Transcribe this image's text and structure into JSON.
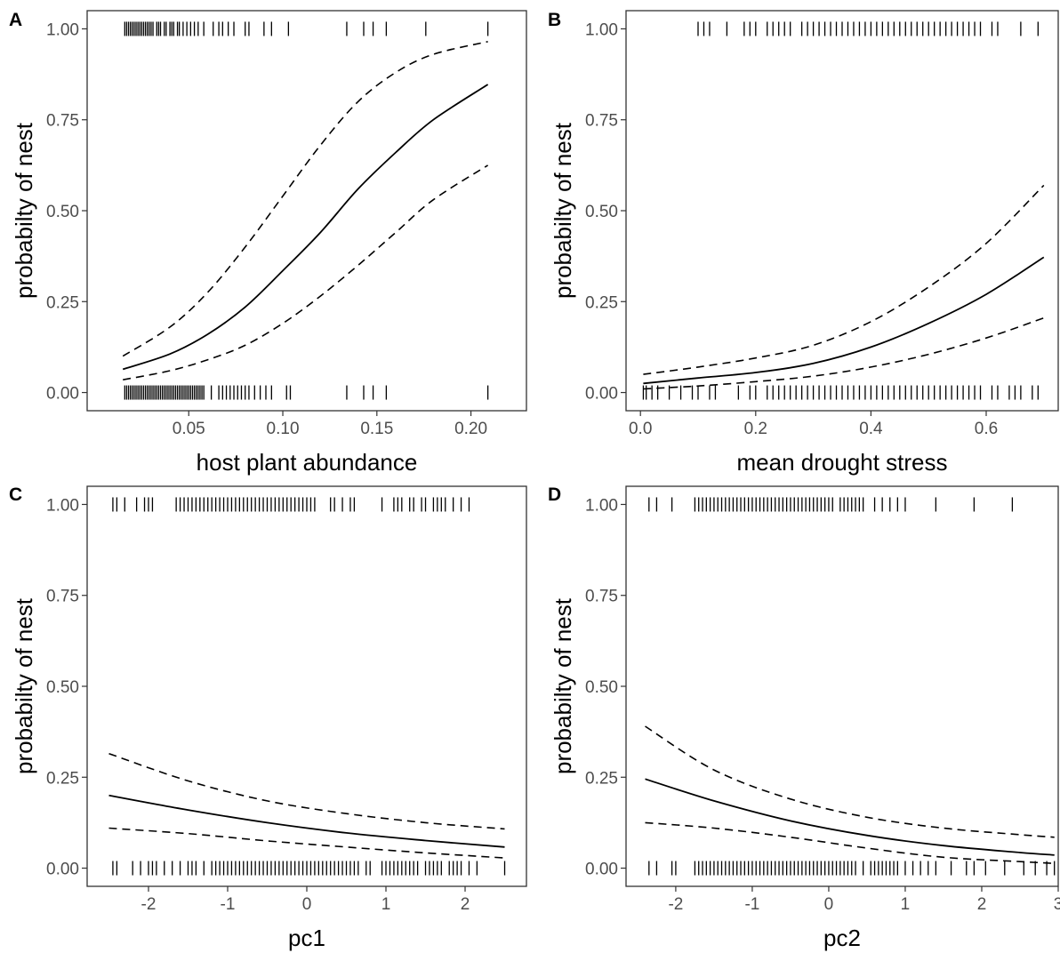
{
  "chart_data": [
    {
      "panel": "A",
      "type": "line",
      "xlabel": "host plant abundance",
      "ylabel": "probabilty of nest",
      "xlim": [
        -0.004,
        0.2295
      ],
      "ylim": [
        -0.05,
        1.05
      ],
      "xticks": [
        0.05,
        0.1,
        0.15,
        0.2
      ],
      "xtick_labels": [
        "0.05",
        "0.10",
        "0.15",
        "0.20"
      ],
      "yticks": [
        0,
        0.25,
        0.5,
        0.75,
        1
      ],
      "ytick_labels": [
        "0.00",
        "0.25",
        "0.50",
        "0.75",
        "1.00"
      ],
      "series": [
        {
          "name": "",
          "style": "fit",
          "x": [
            0.015,
            0.04,
            0.06,
            0.08,
            0.1,
            0.12,
            0.14,
            0.16,
            0.18,
            0.209
          ],
          "values": [
            0.064,
            0.106,
            0.16,
            0.235,
            0.335,
            0.44,
            0.56,
            0.66,
            0.75,
            0.847
          ]
        },
        {
          "name": "",
          "style": "ci",
          "x": [
            0.015,
            0.04,
            0.06,
            0.08,
            0.1,
            0.12,
            0.14,
            0.16,
            0.18,
            0.209
          ],
          "values": [
            0.1,
            0.18,
            0.275,
            0.4,
            0.54,
            0.68,
            0.8,
            0.88,
            0.93,
            0.965
          ]
        },
        {
          "name": "",
          "style": "ci",
          "x": [
            0.015,
            0.04,
            0.06,
            0.08,
            0.1,
            0.12,
            0.14,
            0.16,
            0.18,
            0.209
          ],
          "values": [
            0.035,
            0.06,
            0.09,
            0.13,
            0.19,
            0.265,
            0.35,
            0.44,
            0.53,
            0.625
          ]
        }
      ],
      "rug_top": [
        0.016,
        0.017,
        0.018,
        0.019,
        0.02,
        0.021,
        0.022,
        0.023,
        0.024,
        0.025,
        0.026,
        0.027,
        0.028,
        0.029,
        0.03,
        0.031,
        0.033,
        0.034,
        0.035,
        0.037,
        0.038,
        0.04,
        0.041,
        0.042,
        0.044,
        0.045,
        0.047,
        0.049,
        0.051,
        0.053,
        0.055,
        0.058,
        0.063,
        0.066,
        0.068,
        0.071,
        0.074,
        0.08,
        0.082,
        0.09,
        0.094,
        0.103,
        0.134,
        0.143,
        0.148,
        0.155,
        0.176,
        0.209
      ],
      "rug_bottom": [
        0.016,
        0.017,
        0.018,
        0.019,
        0.02,
        0.021,
        0.022,
        0.023,
        0.024,
        0.025,
        0.026,
        0.027,
        0.028,
        0.029,
        0.03,
        0.031,
        0.032,
        0.033,
        0.034,
        0.035,
        0.036,
        0.037,
        0.038,
        0.039,
        0.04,
        0.041,
        0.042,
        0.043,
        0.044,
        0.045,
        0.046,
        0.047,
        0.048,
        0.049,
        0.05,
        0.051,
        0.052,
        0.053,
        0.054,
        0.055,
        0.056,
        0.057,
        0.058,
        0.062,
        0.066,
        0.068,
        0.07,
        0.072,
        0.074,
        0.076,
        0.078,
        0.08,
        0.082,
        0.085,
        0.088,
        0.091,
        0.094,
        0.102,
        0.104,
        0.134,
        0.143,
        0.148,
        0.155,
        0.209
      ]
    },
    {
      "panel": "B",
      "type": "line",
      "xlabel": "mean drought stress",
      "ylabel": "probabilty of nest",
      "xlim": [
        -0.025,
        0.725
      ],
      "ylim": [
        -0.05,
        1.05
      ],
      "xticks": [
        0.0,
        0.2,
        0.4,
        0.6
      ],
      "xtick_labels": [
        "0.0",
        "0.2",
        "0.4",
        "0.6"
      ],
      "yticks": [
        0,
        0.25,
        0.5,
        0.75,
        1
      ],
      "ytick_labels": [
        "0.00",
        "0.25",
        "0.50",
        "0.75",
        "1.00"
      ],
      "series": [
        {
          "name": "",
          "style": "fit",
          "x": [
            0.005,
            0.1,
            0.2,
            0.3,
            0.4,
            0.5,
            0.6,
            0.7
          ],
          "values": [
            0.025,
            0.04,
            0.055,
            0.08,
            0.125,
            0.19,
            0.27,
            0.372
          ]
        },
        {
          "name": "",
          "style": "ci",
          "x": [
            0.005,
            0.1,
            0.2,
            0.3,
            0.4,
            0.5,
            0.6,
            0.7
          ],
          "values": [
            0.05,
            0.07,
            0.095,
            0.13,
            0.195,
            0.29,
            0.41,
            0.57
          ]
        },
        {
          "name": "",
          "style": "ci",
          "x": [
            0.005,
            0.1,
            0.2,
            0.3,
            0.4,
            0.5,
            0.6,
            0.7
          ],
          "values": [
            0.01,
            0.018,
            0.03,
            0.045,
            0.07,
            0.105,
            0.15,
            0.205
          ]
        }
      ],
      "rug_top": [
        0.1,
        0.11,
        0.12,
        0.15,
        0.18,
        0.19,
        0.2,
        0.22,
        0.23,
        0.24,
        0.25,
        0.26,
        0.28,
        0.29,
        0.3,
        0.31,
        0.32,
        0.33,
        0.34,
        0.35,
        0.36,
        0.37,
        0.38,
        0.39,
        0.4,
        0.41,
        0.42,
        0.43,
        0.44,
        0.45,
        0.46,
        0.47,
        0.48,
        0.49,
        0.5,
        0.51,
        0.52,
        0.53,
        0.54,
        0.55,
        0.56,
        0.57,
        0.58,
        0.59,
        0.61,
        0.62,
        0.66,
        0.69
      ],
      "rug_bottom": [
        0.005,
        0.01,
        0.02,
        0.03,
        0.05,
        0.07,
        0.09,
        0.1,
        0.12,
        0.13,
        0.17,
        0.19,
        0.2,
        0.22,
        0.23,
        0.24,
        0.25,
        0.26,
        0.27,
        0.28,
        0.29,
        0.3,
        0.31,
        0.32,
        0.33,
        0.34,
        0.35,
        0.36,
        0.37,
        0.38,
        0.39,
        0.4,
        0.41,
        0.42,
        0.43,
        0.44,
        0.45,
        0.46,
        0.47,
        0.48,
        0.49,
        0.5,
        0.51,
        0.52,
        0.53,
        0.54,
        0.55,
        0.56,
        0.57,
        0.58,
        0.59,
        0.61,
        0.62,
        0.64,
        0.65,
        0.66,
        0.68,
        0.69
      ]
    },
    {
      "panel": "C",
      "type": "line",
      "xlabel": "pc1",
      "ylabel": "probabilty of nest",
      "xlim": [
        -2.775,
        2.775
      ],
      "ylim": [
        -0.05,
        1.05
      ],
      "xticks": [
        -2,
        -1,
        0,
        1,
        2
      ],
      "xtick_labels": [
        "-2",
        "-1",
        "0",
        "1",
        "2"
      ],
      "yticks": [
        0,
        0.25,
        0.5,
        0.75,
        1
      ],
      "ytick_labels": [
        "0.00",
        "0.25",
        "0.50",
        "0.75",
        "1.00"
      ],
      "series": [
        {
          "name": "",
          "style": "fit",
          "x": [
            -2.5,
            -1.5,
            -0.5,
            0.5,
            1.5,
            2.5
          ],
          "values": [
            0.2,
            0.16,
            0.125,
            0.097,
            0.076,
            0.058
          ]
        },
        {
          "name": "",
          "style": "ci",
          "x": [
            -2.5,
            -1.5,
            -0.5,
            0.5,
            1.5,
            2.5
          ],
          "values": [
            0.315,
            0.24,
            0.185,
            0.15,
            0.125,
            0.108
          ]
        },
        {
          "name": "",
          "style": "ci",
          "x": [
            -2.5,
            -1.5,
            -0.5,
            0.5,
            1.5,
            2.5
          ],
          "values": [
            0.11,
            0.095,
            0.075,
            0.058,
            0.042,
            0.028
          ]
        }
      ],
      "rug_top": [
        -2.45,
        -2.4,
        -2.3,
        -2.15,
        -2.05,
        -2.0,
        -1.95,
        -1.65,
        -1.6,
        -1.55,
        -1.5,
        -1.45,
        -1.4,
        -1.35,
        -1.3,
        -1.25,
        -1.2,
        -1.15,
        -1.1,
        -1.05,
        -1.0,
        -0.95,
        -0.9,
        -0.85,
        -0.8,
        -0.75,
        -0.7,
        -0.65,
        -0.6,
        -0.55,
        -0.5,
        -0.45,
        -0.4,
        -0.35,
        -0.3,
        -0.25,
        -0.2,
        -0.15,
        -0.1,
        -0.05,
        0.0,
        0.05,
        0.1,
        0.3,
        0.35,
        0.45,
        0.55,
        0.6,
        0.95,
        1.1,
        1.15,
        1.2,
        1.3,
        1.35,
        1.45,
        1.5,
        1.6,
        1.65,
        1.7,
        1.75,
        1.85,
        1.95,
        2.05
      ],
      "rug_bottom": [
        -2.45,
        -2.4,
        -2.2,
        -2.1,
        -2.0,
        -1.95,
        -1.9,
        -1.8,
        -1.7,
        -1.6,
        -1.5,
        -1.45,
        -1.4,
        -1.3,
        -1.2,
        -1.15,
        -1.1,
        -1.05,
        -1.0,
        -0.95,
        -0.9,
        -0.85,
        -0.8,
        -0.75,
        -0.7,
        -0.65,
        -0.6,
        -0.55,
        -0.5,
        -0.45,
        -0.4,
        -0.35,
        -0.3,
        -0.25,
        -0.2,
        -0.15,
        -0.1,
        -0.05,
        0.0,
        0.05,
        0.1,
        0.15,
        0.2,
        0.25,
        0.3,
        0.35,
        0.4,
        0.45,
        0.5,
        0.55,
        0.6,
        0.65,
        0.75,
        0.8,
        0.95,
        1.0,
        1.05,
        1.1,
        1.15,
        1.2,
        1.25,
        1.3,
        1.35,
        1.4,
        1.5,
        1.55,
        1.6,
        1.65,
        1.7,
        1.8,
        1.85,
        1.9,
        1.95,
        2.05,
        2.15,
        2.5
      ]
    },
    {
      "panel": "D",
      "type": "line",
      "xlabel": "pc2",
      "ylabel": "probabilty of nest",
      "xlim": [
        -2.65,
        3.0
      ],
      "ylim": [
        -0.05,
        1.05
      ],
      "xticks": [
        -2,
        -1,
        0,
        1,
        2,
        3
      ],
      "xtick_labels": [
        "-2",
        "-1",
        "0",
        "1",
        "2",
        "3"
      ],
      "yticks": [
        0,
        0.25,
        0.5,
        0.75,
        1
      ],
      "ytick_labels": [
        "0.00",
        "0.25",
        "0.50",
        "0.75",
        "1.00"
      ],
      "series": [
        {
          "name": "",
          "style": "fit",
          "x": [
            -2.4,
            -1.5,
            -0.5,
            0.5,
            1.5,
            2.5,
            2.95
          ],
          "values": [
            0.245,
            0.185,
            0.13,
            0.09,
            0.062,
            0.043,
            0.036
          ]
        },
        {
          "name": "",
          "style": "ci",
          "x": [
            -2.4,
            -1.5,
            -0.5,
            0.5,
            1.5,
            2.5,
            2.95
          ],
          "values": [
            0.39,
            0.27,
            0.19,
            0.14,
            0.11,
            0.092,
            0.085
          ]
        },
        {
          "name": "",
          "style": "ci",
          "x": [
            -2.4,
            -1.5,
            -0.5,
            0.5,
            1.5,
            2.5,
            2.95
          ],
          "values": [
            0.125,
            0.11,
            0.085,
            0.055,
            0.03,
            0.018,
            0.013
          ]
        }
      ],
      "rug_top": [
        -2.35,
        -2.25,
        -2.05,
        -1.75,
        -1.7,
        -1.65,
        -1.6,
        -1.55,
        -1.5,
        -1.45,
        -1.4,
        -1.35,
        -1.3,
        -1.25,
        -1.2,
        -1.15,
        -1.1,
        -1.05,
        -1.0,
        -0.95,
        -0.9,
        -0.85,
        -0.8,
        -0.75,
        -0.7,
        -0.65,
        -0.6,
        -0.55,
        -0.5,
        -0.45,
        -0.4,
        -0.35,
        -0.3,
        -0.25,
        -0.2,
        -0.15,
        -0.1,
        -0.05,
        0.0,
        0.05,
        0.15,
        0.2,
        0.25,
        0.3,
        0.35,
        0.4,
        0.45,
        0.6,
        0.7,
        0.8,
        0.9,
        1.0,
        1.4,
        1.9,
        2.4
      ],
      "rug_bottom": [
        -2.35,
        -2.25,
        -2.05,
        -2.0,
        -1.75,
        -1.7,
        -1.65,
        -1.6,
        -1.55,
        -1.5,
        -1.45,
        -1.4,
        -1.35,
        -1.3,
        -1.25,
        -1.2,
        -1.15,
        -1.1,
        -1.05,
        -1.0,
        -0.95,
        -0.9,
        -0.85,
        -0.8,
        -0.75,
        -0.7,
        -0.65,
        -0.6,
        -0.55,
        -0.5,
        -0.45,
        -0.4,
        -0.35,
        -0.3,
        -0.25,
        -0.2,
        -0.15,
        -0.1,
        -0.05,
        0.0,
        0.05,
        0.1,
        0.15,
        0.2,
        0.25,
        0.3,
        0.35,
        0.45,
        0.55,
        0.6,
        0.65,
        0.7,
        0.75,
        0.8,
        0.85,
        0.9,
        1.0,
        1.1,
        1.2,
        1.3,
        1.4,
        1.6,
        1.8,
        1.9,
        2.05,
        2.3,
        2.55,
        2.7,
        2.85,
        2.95
      ]
    }
  ]
}
